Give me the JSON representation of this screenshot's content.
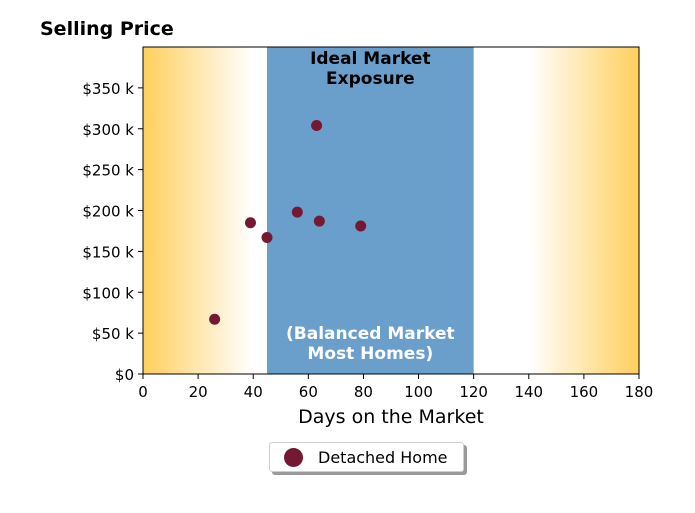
{
  "chart_data": {
    "type": "scatter",
    "title": "Selling Price",
    "xlabel": "Days on the Market",
    "ylabel": "",
    "xlim": [
      0,
      180
    ],
    "ylim": [
      0,
      400000
    ],
    "x_ticks": [
      0,
      20,
      40,
      60,
      80,
      100,
      120,
      140,
      160,
      180
    ],
    "y_ticks": [
      0,
      50000,
      100000,
      150000,
      200000,
      250000,
      300000,
      350000
    ],
    "y_tick_labels": [
      "$0",
      "$50 k",
      "$100 k",
      "$150 k",
      "$200 k",
      "$250 k",
      "$300 k",
      "$350 k"
    ],
    "grid": false,
    "highlight_band": {
      "x_range": [
        45,
        120
      ],
      "color": "#6a9fcb",
      "top_label_lines": [
        "Ideal Market",
        "Exposure"
      ],
      "bottom_label_lines": [
        "(Balanced Market",
        "Most Homes)"
      ]
    },
    "background_gradient": {
      "edge_color": "#ffcf5c",
      "center_color": "#ffffff"
    },
    "series": [
      {
        "name": "Detached Home",
        "color": "#751833",
        "points": [
          {
            "x": 26,
            "y": 67000
          },
          {
            "x": 39,
            "y": 185000
          },
          {
            "x": 45,
            "y": 167000
          },
          {
            "x": 56,
            "y": 198000
          },
          {
            "x": 63,
            "y": 304000
          },
          {
            "x": 64,
            "y": 187000
          },
          {
            "x": 79,
            "y": 181000
          }
        ]
      }
    ],
    "legend": {
      "position": "bottom-center",
      "entries": [
        "Detached Home"
      ]
    }
  }
}
